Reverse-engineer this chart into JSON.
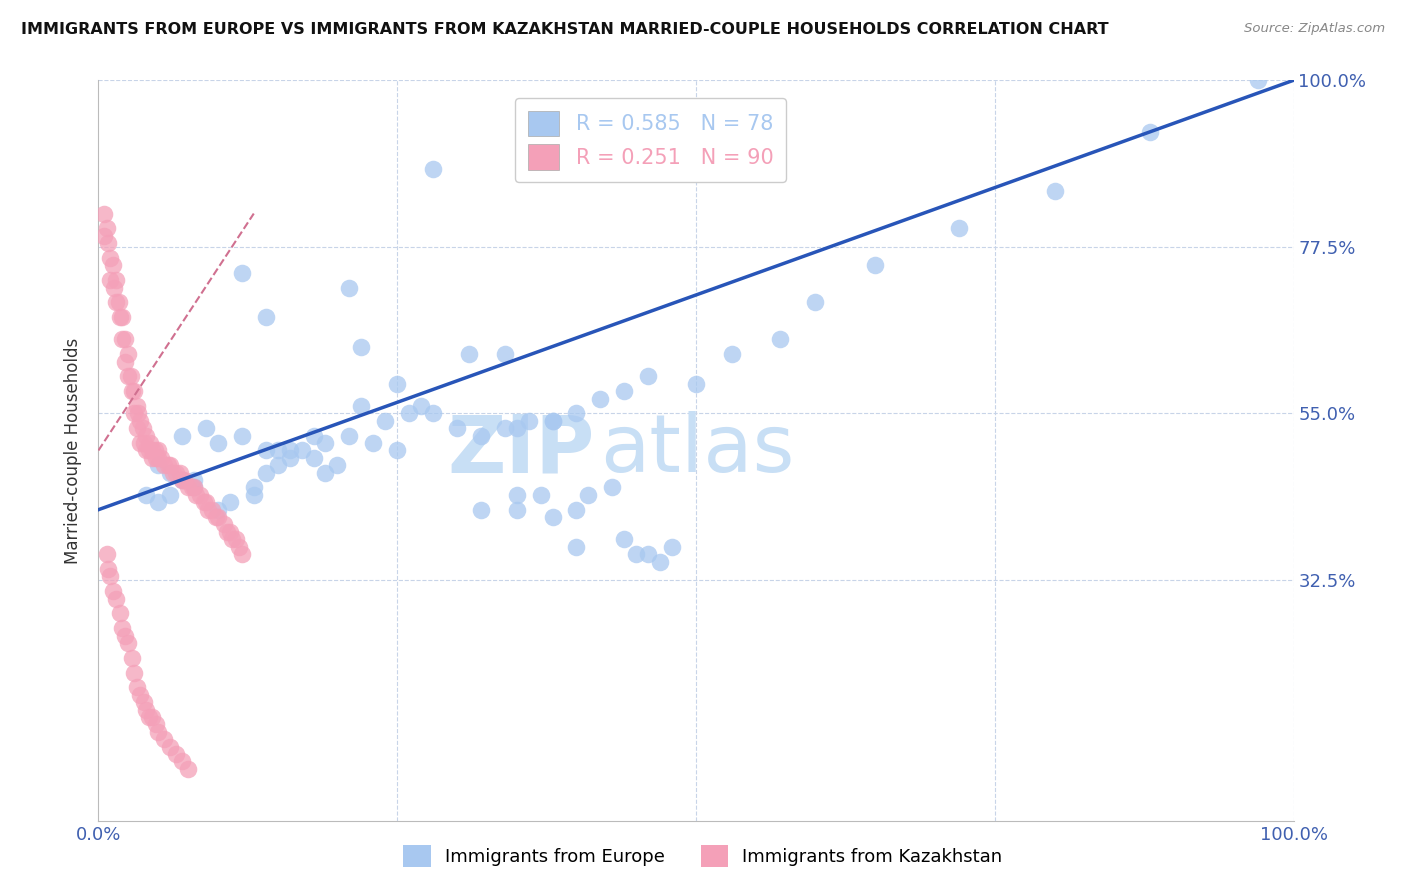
{
  "title": "IMMIGRANTS FROM EUROPE VS IMMIGRANTS FROM KAZAKHSTAN MARRIED-COUPLE HOUSEHOLDS CORRELATION CHART",
  "source": "Source: ZipAtlas.com",
  "ylabel": "Married-couple Households",
  "xlim": [
    0,
    1
  ],
  "ylim": [
    0,
    1
  ],
  "xtick_labels": [
    "0.0%",
    "100.0%"
  ],
  "ytick_labels": [
    "32.5%",
    "55.0%",
    "77.5%",
    "100.0%"
  ],
  "ytick_positions": [
    0.325,
    0.55,
    0.775,
    1.0
  ],
  "legend_entries": [
    {
      "label_r": "R = 0.585",
      "label_n": "N = 78",
      "color": "#a8c8f0"
    },
    {
      "label_r": "R = 0.251",
      "label_n": "N = 90",
      "color": "#f4a0b8"
    }
  ],
  "blue_scatter_x": [
    0.28,
    0.12,
    0.14,
    0.21,
    0.22,
    0.31,
    0.34,
    0.25,
    0.27,
    0.35,
    0.38,
    0.2,
    0.19,
    0.18,
    0.16,
    0.15,
    0.14,
    0.13,
    0.08,
    0.07,
    0.06,
    0.05,
    0.04,
    0.05,
    0.06,
    0.08,
    0.1,
    0.11,
    0.13,
    0.16,
    0.18,
    0.07,
    0.09,
    0.1,
    0.12,
    0.14,
    0.15,
    0.17,
    0.19,
    0.21,
    0.23,
    0.25,
    0.22,
    0.24,
    0.26,
    0.28,
    0.3,
    0.32,
    0.34,
    0.36,
    0.38,
    0.4,
    0.42,
    0.44,
    0.46,
    0.5,
    0.53,
    0.57,
    0.6,
    0.65,
    0.72,
    0.8,
    0.88,
    0.97,
    0.4,
    0.44,
    0.45,
    0.46,
    0.47,
    0.48,
    0.35,
    0.37,
    0.41,
    0.43,
    0.4,
    0.38,
    0.35,
    0.32
  ],
  "blue_scatter_y": [
    0.88,
    0.74,
    0.68,
    0.72,
    0.64,
    0.63,
    0.63,
    0.59,
    0.56,
    0.53,
    0.54,
    0.48,
    0.47,
    0.49,
    0.5,
    0.48,
    0.47,
    0.45,
    0.45,
    0.46,
    0.44,
    0.43,
    0.44,
    0.48,
    0.47,
    0.46,
    0.42,
    0.43,
    0.44,
    0.49,
    0.52,
    0.52,
    0.53,
    0.51,
    0.52,
    0.5,
    0.5,
    0.5,
    0.51,
    0.52,
    0.51,
    0.5,
    0.56,
    0.54,
    0.55,
    0.55,
    0.53,
    0.52,
    0.53,
    0.54,
    0.54,
    0.55,
    0.57,
    0.58,
    0.6,
    0.59,
    0.63,
    0.65,
    0.7,
    0.75,
    0.8,
    0.85,
    0.93,
    1.0,
    0.37,
    0.38,
    0.36,
    0.36,
    0.35,
    0.37,
    0.44,
    0.44,
    0.44,
    0.45,
    0.42,
    0.41,
    0.42,
    0.42
  ],
  "pink_scatter_x": [
    0.005,
    0.005,
    0.007,
    0.008,
    0.01,
    0.01,
    0.012,
    0.013,
    0.015,
    0.015,
    0.017,
    0.018,
    0.02,
    0.02,
    0.022,
    0.022,
    0.025,
    0.025,
    0.027,
    0.028,
    0.03,
    0.03,
    0.032,
    0.032,
    0.033,
    0.035,
    0.035,
    0.037,
    0.038,
    0.04,
    0.04,
    0.042,
    0.043,
    0.045,
    0.045,
    0.047,
    0.048,
    0.05,
    0.05,
    0.052,
    0.055,
    0.058,
    0.06,
    0.062,
    0.065,
    0.068,
    0.07,
    0.072,
    0.075,
    0.078,
    0.08,
    0.082,
    0.085,
    0.088,
    0.09,
    0.092,
    0.095,
    0.098,
    0.1,
    0.105,
    0.108,
    0.11,
    0.112,
    0.115,
    0.118,
    0.12,
    0.007,
    0.008,
    0.01,
    0.012,
    0.015,
    0.018,
    0.02,
    0.022,
    0.025,
    0.028,
    0.03,
    0.032,
    0.035,
    0.038,
    0.04,
    0.042,
    0.045,
    0.048,
    0.05,
    0.055,
    0.06,
    0.065,
    0.07,
    0.075
  ],
  "pink_scatter_y": [
    0.82,
    0.79,
    0.8,
    0.78,
    0.76,
    0.73,
    0.75,
    0.72,
    0.73,
    0.7,
    0.7,
    0.68,
    0.68,
    0.65,
    0.65,
    0.62,
    0.63,
    0.6,
    0.6,
    0.58,
    0.58,
    0.55,
    0.56,
    0.53,
    0.55,
    0.54,
    0.51,
    0.53,
    0.51,
    0.52,
    0.5,
    0.5,
    0.51,
    0.5,
    0.49,
    0.5,
    0.49,
    0.5,
    0.49,
    0.49,
    0.48,
    0.48,
    0.48,
    0.47,
    0.47,
    0.47,
    0.46,
    0.46,
    0.45,
    0.45,
    0.45,
    0.44,
    0.44,
    0.43,
    0.43,
    0.42,
    0.42,
    0.41,
    0.41,
    0.4,
    0.39,
    0.39,
    0.38,
    0.38,
    0.37,
    0.36,
    0.36,
    0.34,
    0.33,
    0.31,
    0.3,
    0.28,
    0.26,
    0.25,
    0.24,
    0.22,
    0.2,
    0.18,
    0.17,
    0.16,
    0.15,
    0.14,
    0.14,
    0.13,
    0.12,
    0.11,
    0.1,
    0.09,
    0.08,
    0.07
  ],
  "blue_line_x": [
    0.0,
    1.0
  ],
  "blue_line_y": [
    0.42,
    1.0
  ],
  "pink_line_x": [
    0.0,
    0.13
  ],
  "pink_line_y": [
    0.5,
    0.82
  ],
  "blue_dot_color": "#a8c8f0",
  "pink_dot_color": "#f4a0b8",
  "blue_line_color": "#2855b8",
  "pink_line_color": "#d07090",
  "watermark_zip": "ZIP",
  "watermark_atlas": "atlas",
  "watermark_color": "#c8dff5",
  "background_color": "#ffffff",
  "grid_color": "#c8d4e8",
  "title_fontsize": 11.5,
  "axis_label_color": "#4060b0",
  "legend_box_color": "#e8f0fc"
}
